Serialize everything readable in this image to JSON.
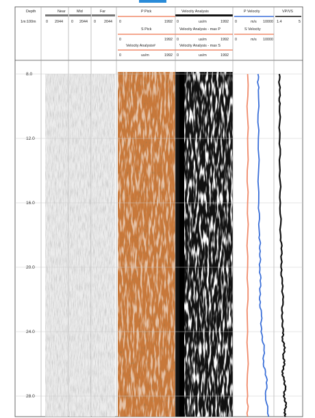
{
  "header": {
    "depth_label": "Depth",
    "scale_label": "1m:100m",
    "tracks": [
      {
        "title": "Near",
        "min": "0",
        "max": "2044"
      },
      {
        "title": "Mid",
        "min": "0",
        "max": "2044"
      },
      {
        "title": "Far",
        "min": "0",
        "max": "2044"
      }
    ],
    "p_pick": {
      "title": "P Pick",
      "min": "0",
      "max": "1992"
    },
    "s_pick": {
      "title": "S Pick",
      "min": "0",
      "max": "1992"
    },
    "va_main": {
      "title": "Velocity Analysis",
      "min": "0",
      "unit": "us/m",
      "max": "1992"
    },
    "va_p": {
      "title": "Velocity Analysis - max P",
      "min": "0",
      "unit": "us/m",
      "max": "1992"
    },
    "va_s": {
      "title": "Velocity Analysis - max S",
      "min": "0",
      "unit": "us/m",
      "max": "1992"
    },
    "va_hash": {
      "title": "Velocity Analysis#",
      "min": "0",
      "unit": "us/m",
      "max": "1992"
    },
    "p_velocity": {
      "title": "P Velocity",
      "min": "0",
      "unit": "m/s",
      "max": "10000"
    },
    "s_velocity": {
      "title": "S Velocity",
      "min": "0",
      "unit": "m/s",
      "max": "10000"
    },
    "vpvs": {
      "title": "VP/VS",
      "min": "1.4",
      "max": "5"
    }
  },
  "colors": {
    "p_velocity": "#3a6fd8",
    "s_velocity": "#f08a6a",
    "vpvs": "#111111",
    "va_bg": "#c8783a",
    "grid": "#c9c9c9",
    "top_accent": "#2a8bd8"
  },
  "chart_data": {
    "type": "line",
    "title": "",
    "ylabel": "Depth",
    "ylim": [
      7.0,
      29.5
    ],
    "depth_ticks": [
      "8.0",
      "12.0",
      "16.0",
      "20.0",
      "24.0",
      "28.0"
    ],
    "depth_tick_values": [
      8,
      12,
      16,
      20,
      24,
      28
    ],
    "series": [
      {
        "name": "S Velocity",
        "unit": "m/s",
        "xlim": [
          0,
          10000
        ],
        "color": "#f08a6a",
        "depth": [
          8,
          12,
          16,
          20,
          24,
          28,
          29.5
        ],
        "values": [
          1750,
          1750,
          1750,
          1750,
          1750,
          1750,
          1750
        ]
      },
      {
        "name": "P Velocity",
        "unit": "m/s",
        "xlim": [
          0,
          10000
        ],
        "color": "#3a6fd8",
        "depth": [
          8,
          9,
          12,
          16,
          18,
          19,
          20,
          21,
          22,
          23,
          24,
          25,
          26,
          27,
          28,
          29.5
        ],
        "values": [
          3100,
          3150,
          3150,
          3200,
          3300,
          3400,
          3350,
          3450,
          3300,
          3550,
          3500,
          3900,
          3800,
          4300,
          4100,
          4500
        ]
      },
      {
        "name": "VP/VS",
        "xlim": [
          1.4,
          5
        ],
        "color": "#111111",
        "depth": [
          8,
          9,
          10,
          12,
          14,
          16,
          18,
          19,
          20,
          21,
          22,
          23,
          24,
          24.5,
          25,
          25.5,
          26,
          26.5,
          27,
          27.5,
          28,
          28.5,
          29,
          29.5
        ],
        "values": [
          1.95,
          2.0,
          2.0,
          2.02,
          2.05,
          2.1,
          2.15,
          2.3,
          2.2,
          2.35,
          2.45,
          2.3,
          2.5,
          2.4,
          2.75,
          2.5,
          2.7,
          2.35,
          2.6,
          2.8,
          2.55,
          2.9,
          2.7,
          2.8
        ]
      }
    ]
  }
}
